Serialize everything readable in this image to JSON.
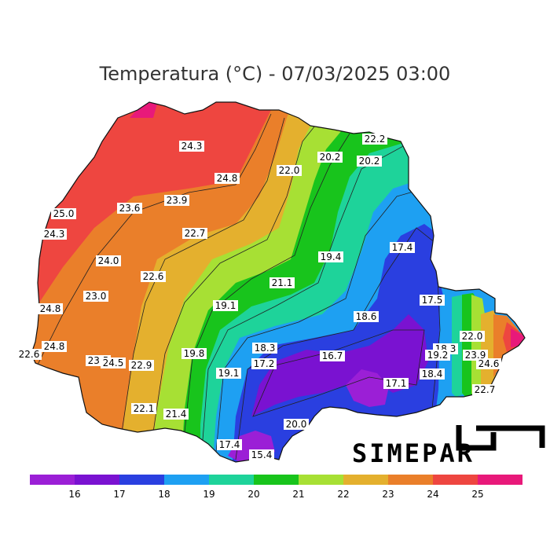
{
  "title": "Temperatura (°C) - 07/03/2025 03:00",
  "logo": {
    "text": "SIMEPAR"
  },
  "colors": {
    "background": "#ffffff",
    "bands": [
      "#9b1fd6",
      "#7a12d1",
      "#2a3fe0",
      "#1ea0f2",
      "#1ed39a",
      "#18c41c",
      "#a7e034",
      "#e4b02e",
      "#ea7f2a",
      "#ee4640",
      "#e8197a"
    ]
  },
  "color_scale": {
    "ticks": [
      "16",
      "17",
      "18",
      "19",
      "20",
      "21",
      "22",
      "23",
      "24",
      "25"
    ],
    "band_colors": [
      "#9b1fd6",
      "#7a12d1",
      "#2a3fe0",
      "#1ea0f2",
      "#1ed39a",
      "#18c41c",
      "#a7e034",
      "#e4b02e",
      "#ea7f2a",
      "#ee4640",
      "#e8197a"
    ]
  },
  "stations": [
    {
      "v": "24.3"
    },
    {
      "v": "24.8"
    },
    {
      "v": "22.0"
    },
    {
      "v": "20.2"
    },
    {
      "v": "22.2"
    },
    {
      "v": "20.2"
    },
    {
      "v": "25.0"
    },
    {
      "v": "23.6"
    },
    {
      "v": "23.9"
    },
    {
      "v": "24.3"
    },
    {
      "v": "22.7"
    },
    {
      "v": "17.4"
    },
    {
      "v": "19.4"
    },
    {
      "v": "24.0"
    },
    {
      "v": "22.6"
    },
    {
      "v": "21.1"
    },
    {
      "v": "23.0"
    },
    {
      "v": "17.5"
    },
    {
      "v": "24.8"
    },
    {
      "v": "19.1"
    },
    {
      "v": "18.6"
    },
    {
      "v": "22.6"
    },
    {
      "v": "24.8"
    },
    {
      "v": "18.3"
    },
    {
      "v": "22.0"
    },
    {
      "v": "18.3"
    },
    {
      "v": "19.8"
    },
    {
      "v": "16.7"
    },
    {
      "v": "19.2"
    },
    {
      "v": "23.9"
    },
    {
      "v": "23.5"
    },
    {
      "v": "24.5"
    },
    {
      "v": "22.9"
    },
    {
      "v": "17.2"
    },
    {
      "v": "24.6"
    },
    {
      "v": "19.1"
    },
    {
      "v": "18.4"
    },
    {
      "v": "17.1"
    },
    {
      "v": "22.7"
    },
    {
      "v": "22.1"
    },
    {
      "v": "21.4"
    },
    {
      "v": "20.0"
    },
    {
      "v": "17.4"
    },
    {
      "v": "15.4"
    }
  ]
}
